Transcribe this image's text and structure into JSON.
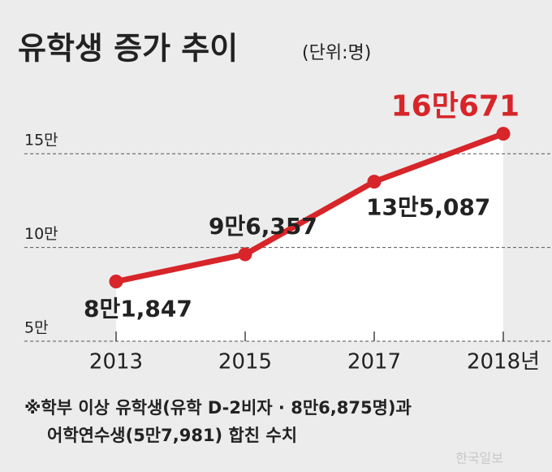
{
  "chart_data": {
    "type": "line",
    "title": "유학생 증가 추이",
    "unit": "(단위:명)",
    "categories": [
      "2013",
      "2015",
      "2017",
      "2018년"
    ],
    "series": [
      {
        "color": "#d7252a",
        "values": [
          81847,
          96357,
          135087,
          160671
        ],
        "value_labels": [
          "8만1,847",
          "9만6,357",
          "13만5,087",
          "16만671"
        ]
      }
    ],
    "ylim": [
      50000,
      180000
    ],
    "yticks": [
      {
        "value": 50000,
        "label": "5만"
      },
      {
        "value": 100000,
        "label": "10만"
      },
      {
        "value": 150000,
        "label": "15만"
      }
    ],
    "grid": true,
    "notes": [
      "※학부 이상 유학생(유학 D-2비자 · 8만6,875명)과",
      "어학연수생(5만7,981) 합친 수치"
    ],
    "watermark": "한국일보"
  }
}
